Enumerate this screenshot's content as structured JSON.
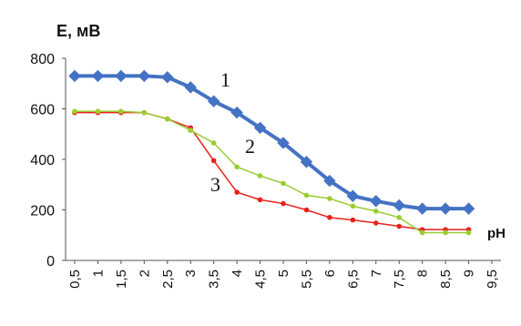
{
  "chart_data": {
    "type": "line",
    "ylabel": "E, мВ",
    "xlabel": "pH",
    "ylim": [
      0,
      800
    ],
    "xlim": [
      0.5,
      9.5
    ],
    "yticks": [
      "0",
      "200",
      "400",
      "600",
      "800"
    ],
    "xticks": [
      "0,5",
      "1",
      "1,5",
      "2",
      "2,5",
      "3",
      "3,5",
      "4",
      "4,5",
      "5",
      "5,5",
      "6",
      "6,5",
      "7",
      "7,5",
      "8",
      "8,5",
      "9",
      "9,5"
    ],
    "series": [
      {
        "name": "1",
        "color": "#4472C4",
        "marker": "diamond",
        "x": [
          0.5,
          1,
          1.5,
          2,
          2.5,
          3,
          3.5,
          4,
          4.5,
          5,
          5.5,
          6,
          6.5,
          7,
          7.5,
          8,
          8.5,
          9
        ],
        "values": [
          730,
          730,
          730,
          730,
          725,
          685,
          630,
          585,
          525,
          465,
          390,
          315,
          255,
          235,
          218,
          205,
          205,
          205
        ]
      },
      {
        "name": "2",
        "color": "#9ACD32",
        "marker": "circle",
        "x": [
          0.5,
          1,
          1.5,
          2,
          2.5,
          3,
          3.5,
          4,
          4.5,
          5,
          5.5,
          6,
          6.5,
          7,
          7.5,
          8,
          8.5,
          9
        ],
        "values": [
          590,
          590,
          590,
          585,
          560,
          515,
          465,
          370,
          335,
          305,
          258,
          245,
          215,
          195,
          170,
          110,
          110,
          110
        ]
      },
      {
        "name": "3",
        "color": "#E8211C",
        "marker": "circle",
        "x": [
          0.5,
          1,
          1.5,
          2,
          2.5,
          3,
          3.5,
          4,
          4.5,
          5,
          5.5,
          6,
          6.5,
          7,
          7.5,
          8,
          8.5,
          9
        ],
        "values": [
          585,
          585,
          585,
          585,
          560,
          525,
          395,
          270,
          240,
          225,
          200,
          170,
          160,
          148,
          135,
          122,
          122,
          122
        ]
      }
    ],
    "grid": false
  }
}
